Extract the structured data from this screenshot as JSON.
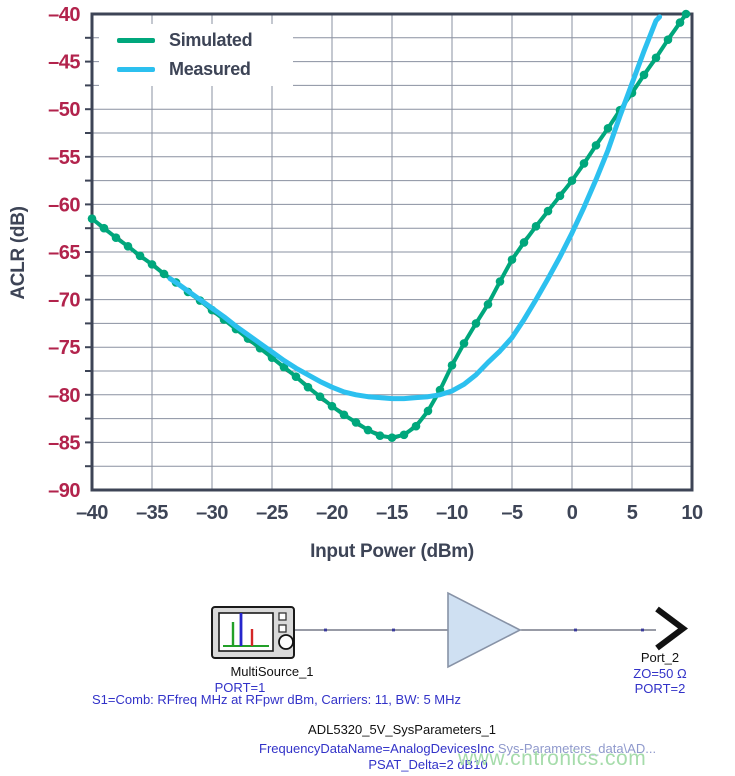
{
  "watermark": "www.cntronics.com",
  "chart_data": {
    "type": "line",
    "title": "",
    "xlabel": "Input Power (dBm)",
    "ylabel": "ACLR (dB)",
    "xlim": [
      -40,
      10
    ],
    "ylim": [
      -90,
      -40
    ],
    "x_ticks": [
      -40,
      -35,
      -30,
      -25,
      -20,
      -15,
      -10,
      -5,
      0,
      5,
      10
    ],
    "x_tick_labels": [
      "–40",
      "–35",
      "–30",
      "–25",
      "–20",
      "–15",
      "–10",
      "–5",
      "0",
      "5",
      "10"
    ],
    "y_ticks": [
      -40,
      -45,
      -50,
      -55,
      -60,
      -65,
      -70,
      -75,
      -80,
      -85,
      -90
    ],
    "y_tick_labels": [
      "–40",
      "–45",
      "–50",
      "–55",
      "–60",
      "–65",
      "–70",
      "–75",
      "–80",
      "–85",
      "–90"
    ],
    "grid": {
      "x_step": 5,
      "y_step": 2.5,
      "on": true
    },
    "legend_position": "top-left",
    "theme": {
      "tick_label_color_y": "#b2234c",
      "tick_label_color_x": "#3d4456",
      "axis_title_color": "#3d4456",
      "grid_color": "#8a90a0",
      "border_color": "#3d4456",
      "background": "#ffffff"
    },
    "series": [
      {
        "name": "Simulated",
        "color": "#00a77c",
        "edge_color": "#a4224a",
        "marker": "circle",
        "x": [
          -40,
          -39,
          -38,
          -37,
          -36,
          -35,
          -34,
          -33,
          -32,
          -31,
          -30,
          -29,
          -28,
          -27,
          -26,
          -25,
          -24,
          -23,
          -22,
          -21,
          -20,
          -19,
          -18,
          -17,
          -16,
          -15,
          -14,
          -13,
          -12,
          -11,
          -10,
          -9,
          -8,
          -7,
          -6,
          -5,
          -4,
          -3,
          -2,
          -1,
          0,
          1,
          2,
          3,
          4,
          5,
          6,
          7,
          8,
          9,
          9.5
        ],
        "y": [
          -61.5,
          -62.5,
          -63.5,
          -64.4,
          -65.4,
          -66.3,
          -67.3,
          -68.2,
          -69.2,
          -70.1,
          -71.1,
          -72.1,
          -73.1,
          -74.1,
          -75.1,
          -76.1,
          -77.1,
          -78.1,
          -79.2,
          -80.2,
          -81.2,
          -82.1,
          -82.9,
          -83.7,
          -84.3,
          -84.5,
          -84.2,
          -83.3,
          -81.7,
          -79.5,
          -76.9,
          -74.6,
          -72.5,
          -70.5,
          -68.1,
          -65.8,
          -64.0,
          -62.3,
          -60.7,
          -59.1,
          -57.5,
          -55.7,
          -53.8,
          -52.0,
          -50.1,
          -48.3,
          -46.4,
          -44.6,
          -42.7,
          -40.9,
          -40.0
        ]
      },
      {
        "name": "Measured",
        "color": "#2cc0ef",
        "marker": "none",
        "x": [
          -33.5,
          -33,
          -32,
          -31,
          -30,
          -29,
          -28,
          -27,
          -26,
          -25,
          -24,
          -23,
          -22,
          -21,
          -20,
          -19,
          -18,
          -17,
          -16,
          -15,
          -14,
          -13,
          -12,
          -11,
          -10,
          -9,
          -8,
          -7,
          -6,
          -5,
          -4,
          -3,
          -2,
          -1,
          0,
          1,
          2,
          3,
          4,
          5,
          6,
          7,
          7.3
        ],
        "y": [
          -67.8,
          -68.2,
          -69.1,
          -70.0,
          -70.9,
          -71.8,
          -72.8,
          -73.7,
          -74.6,
          -75.5,
          -76.4,
          -77.2,
          -77.9,
          -78.6,
          -79.2,
          -79.7,
          -80.0,
          -80.2,
          -80.3,
          -80.4,
          -80.4,
          -80.3,
          -80.2,
          -80.0,
          -79.6,
          -78.9,
          -77.9,
          -76.6,
          -75.4,
          -74.0,
          -72.1,
          -70.0,
          -67.8,
          -65.5,
          -63.0,
          -60.3,
          -57.4,
          -54.3,
          -50.7,
          -47.3,
          -43.9,
          -40.7,
          -40.3
        ]
      }
    ]
  },
  "schematic": {
    "source": {
      "label": "MultiSource_1",
      "port": "PORT=1",
      "params": "S1=Comb: RFfreq MHz at RFpwr dBm, Carriers: 11, BW: 5 MHz"
    },
    "amplifier": {
      "label": "ADL5320_5V_SysParameters_1",
      "param_freq_blue": "FrequencyDataName=AnalogDevicesInc",
      "param_freq_gray": " Sys-Parameters_data\\AD...",
      "param_psat": "PSAT_Delta=2 dB10"
    },
    "port": {
      "label": "Port_2",
      "impedance": "ZO=50 Ω",
      "port": "PORT=2"
    }
  }
}
